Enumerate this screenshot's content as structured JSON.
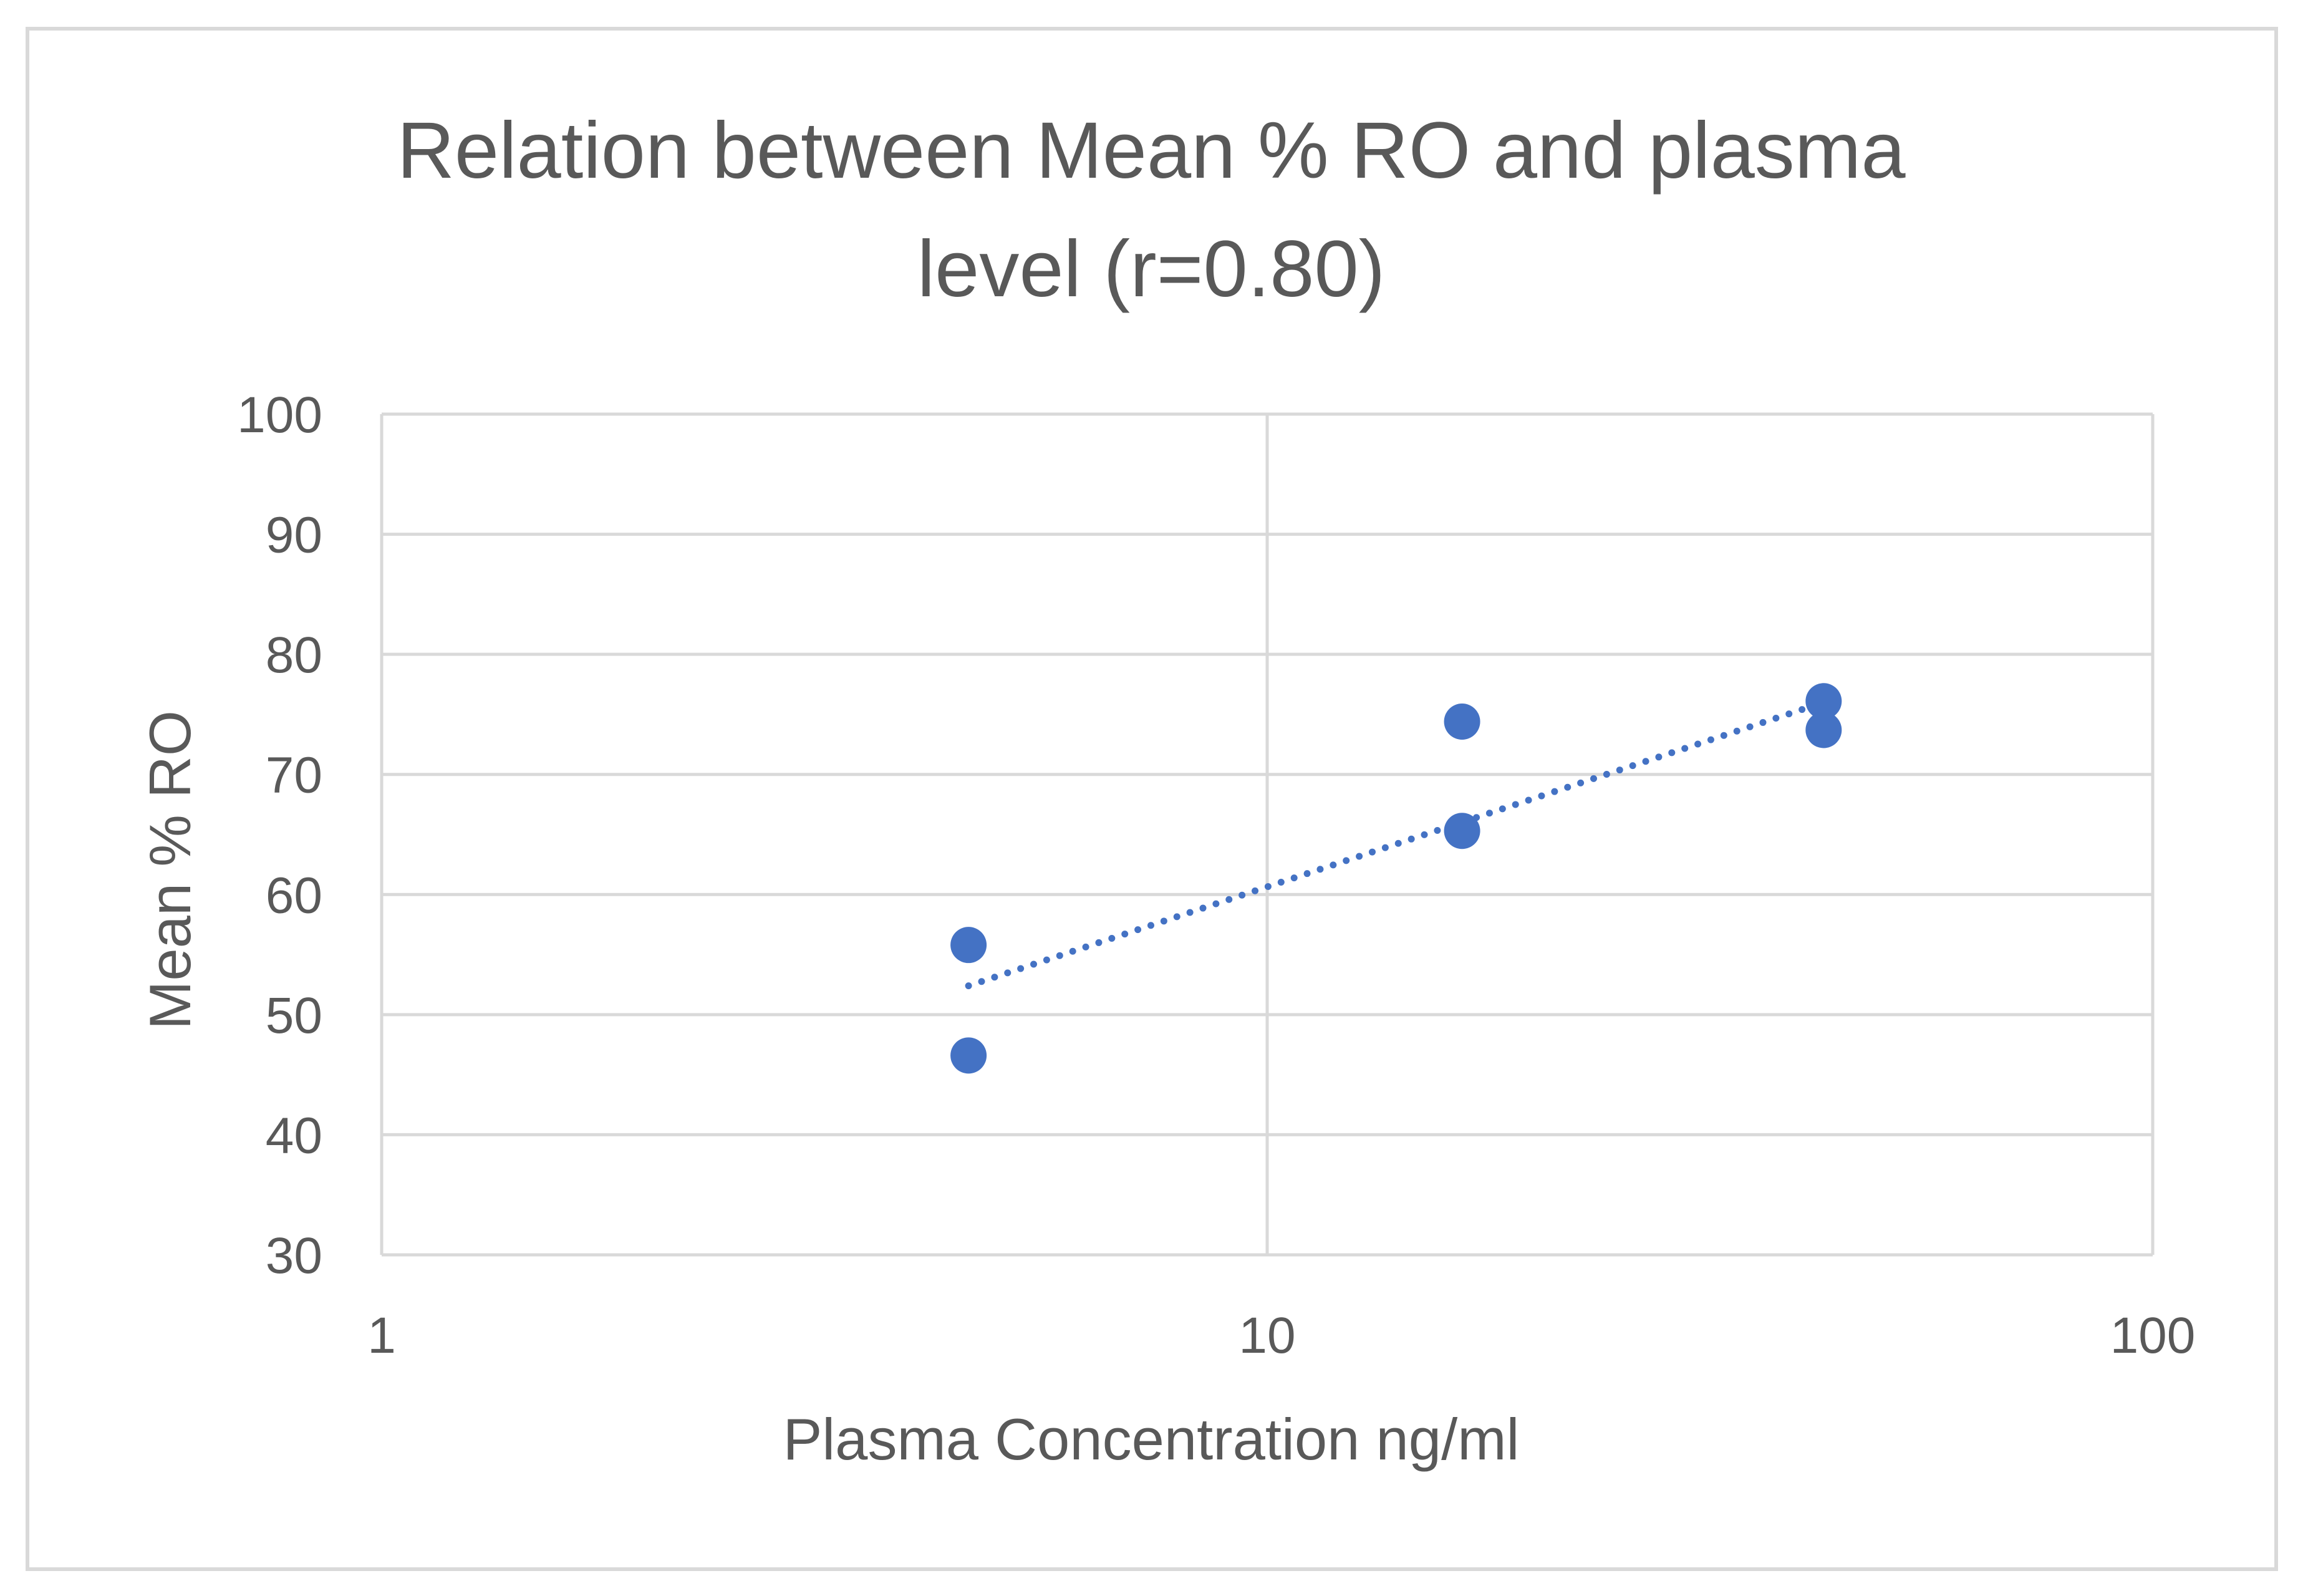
{
  "chart_data": {
    "type": "scatter",
    "title_lines": [
      "Relation between Mean % RO and plasma",
      "level (r=0.80)"
    ],
    "xlabel": "Plasma Concentration ng/ml",
    "ylabel": "Mean  % RO",
    "x_scale": "log",
    "xlim": [
      1,
      100
    ],
    "ylim": [
      30,
      100
    ],
    "x_ticks": [
      1,
      10,
      100
    ],
    "x_tick_labels": [
      "1",
      "10",
      "100"
    ],
    "y_ticks": [
      30,
      40,
      50,
      60,
      70,
      80,
      90,
      100
    ],
    "y_tick_labels": [
      "30",
      "40",
      "50",
      "60",
      "70",
      "80",
      "90",
      "100"
    ],
    "grid": true,
    "legend": "none",
    "series": [
      {
        "name": "Mean % RO",
        "color": "#4472C4",
        "points": [
          {
            "x": 4.6,
            "y": 55.8
          },
          {
            "x": 4.6,
            "y": 46.6
          },
          {
            "x": 16.6,
            "y": 74.4
          },
          {
            "x": 16.6,
            "y": 65.3
          },
          {
            "x": 42.5,
            "y": 76.1
          },
          {
            "x": 42.5,
            "y": 73.7
          }
        ]
      }
    ],
    "trendline": {
      "type": "log-linear",
      "style": "dotted",
      "color": "#4472C4",
      "start": {
        "x": 4.6,
        "y": 52.4
      },
      "end": {
        "x": 42.5,
        "y": 76.0
      }
    }
  },
  "colors": {
    "border": "#d9d9d9",
    "grid": "#d9d9d9",
    "text": "#595959",
    "series": "#4472C4"
  }
}
